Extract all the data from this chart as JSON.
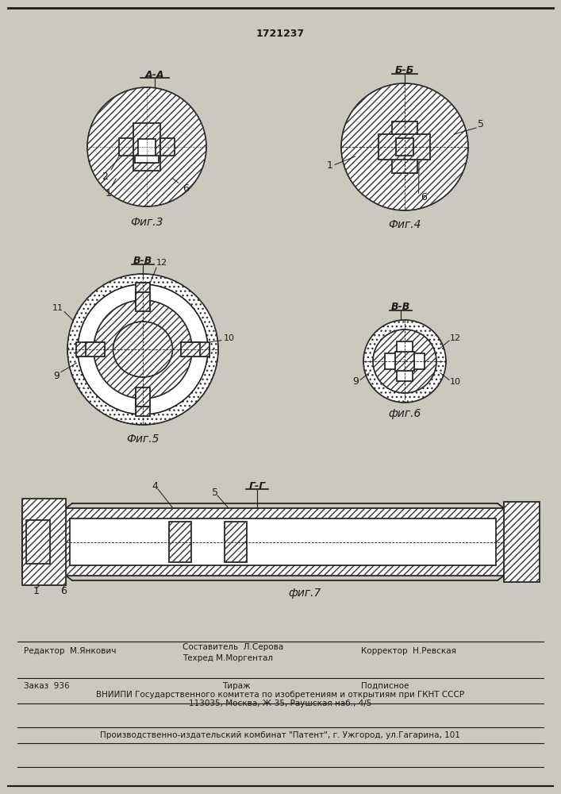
{
  "title": "1721237",
  "bg_color": "#cbc8c0",
  "fig3_label": "Фиг.3",
  "fig4_label": "Фиг.4",
  "fig5_label": "Фиг.5",
  "fig6_label": "фиг.6",
  "fig7_label": "фиг.7",
  "section_aa": "А-А",
  "section_bb": "Б-Б",
  "section_vv1": "В-В",
  "section_vv2": "В-В",
  "section_gg": "Г-Г",
  "footer_line1_left": "Редактор  М.Янкович",
  "footer_line1_mid1": "Составитель  Л.Серова",
  "footer_line1_mid2": "Техред М.Моргентал",
  "footer_line1_right": "Корректор  Н.Ревская",
  "footer_line2_left": "Заказ  936",
  "footer_line2_mid": "Тираж",
  "footer_line2_right": "Подписное",
  "footer_line3": "ВНИИПИ Государственного комитета по изобретениям и открытиям при ГКНТ СССР",
  "footer_line4": "113035, Москва, Ж-35, Раушская наб., 4/5",
  "footer_line5": "Производственно-издательский комбинат \"Патент\", г. Ужгород, ул.Гагарина, 101",
  "line_color": "#1a1a1a",
  "hatch_color": "#333333"
}
